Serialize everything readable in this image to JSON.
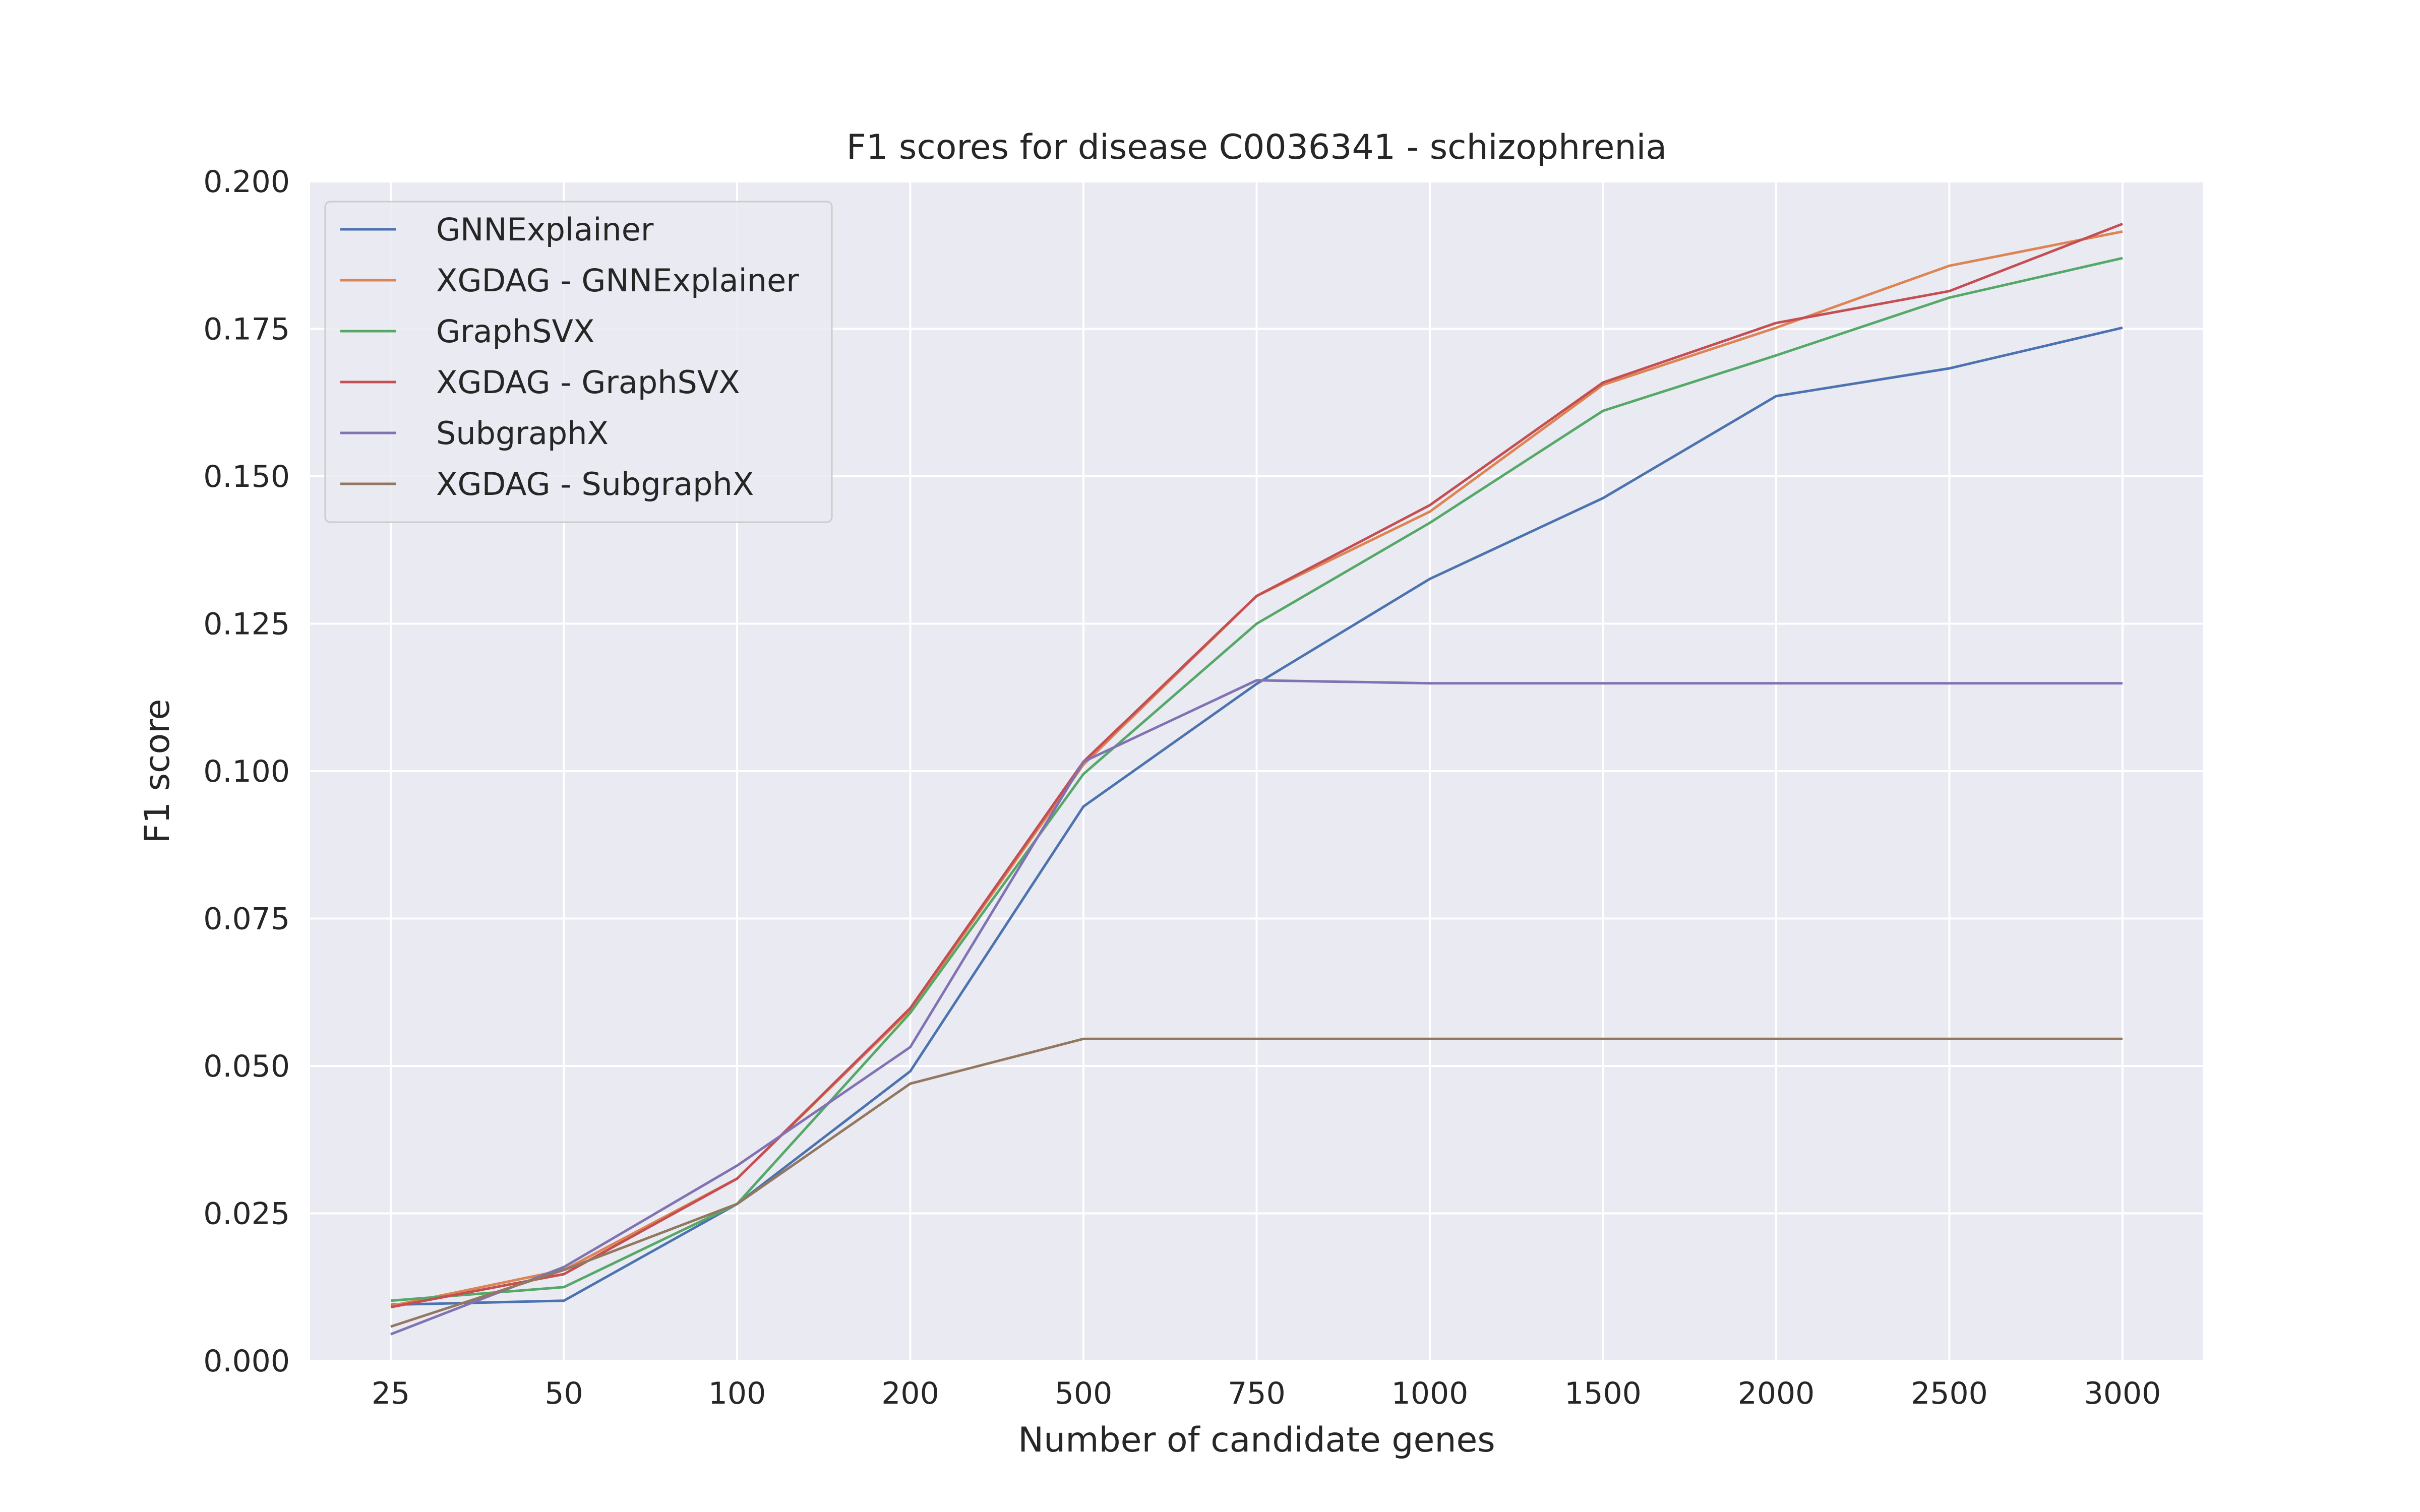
{
  "chart_data": {
    "type": "line",
    "title": "F1 scores for disease C0036341 - schizophrenia",
    "xlabel": "Number of candidate genes",
    "ylabel": "F1 score",
    "categories": [
      "25",
      "50",
      "100",
      "200",
      "500",
      "750",
      "1000",
      "1500",
      "2000",
      "2500",
      "3000"
    ],
    "ylim": [
      0.0,
      0.2
    ],
    "yticks": [
      "0.000",
      "0.025",
      "0.050",
      "0.075",
      "0.100",
      "0.125",
      "0.150",
      "0.175",
      "0.200"
    ],
    "grid": true,
    "legend_position": "upper-left",
    "background": "#eaeaf2",
    "series": [
      {
        "name": "GNNExplainer",
        "color": "#4c72b0",
        "values": [
          0.0095,
          0.0102,
          0.0266,
          0.0491,
          0.094,
          0.1148,
          0.1326,
          0.1463,
          0.1636,
          0.1683,
          0.1752
        ]
      },
      {
        "name": "XGDAG - GNNExplainer",
        "color": "#dd8452",
        "values": [
          0.0093,
          0.0154,
          0.0309,
          0.0595,
          0.1011,
          0.1297,
          0.144,
          0.1655,
          0.1752,
          0.1857,
          0.1915
        ]
      },
      {
        "name": "GraphSVX",
        "color": "#55a868",
        "values": [
          0.0102,
          0.0125,
          0.0266,
          0.059,
          0.0995,
          0.125,
          0.1421,
          0.1611,
          0.1705,
          0.1803,
          0.187
        ]
      },
      {
        "name": "XGDAG - GraphSVX",
        "color": "#c44e52",
        "values": [
          0.0091,
          0.0147,
          0.0309,
          0.0598,
          0.1016,
          0.1297,
          0.1451,
          0.1659,
          0.176,
          0.1814,
          0.1928
        ]
      },
      {
        "name": "SubgraphX",
        "color": "#8172b3",
        "values": [
          0.0045,
          0.0159,
          0.0331,
          0.0532,
          0.1016,
          0.1154,
          0.1149,
          0.1149,
          0.1149,
          0.1149,
          0.1149
        ]
      },
      {
        "name": "XGDAG - SubgraphX",
        "color": "#937860",
        "values": [
          0.0058,
          0.0154,
          0.0266,
          0.047,
          0.0546,
          0.0546,
          0.0546,
          0.0546,
          0.0546,
          0.0546,
          0.0546
        ]
      }
    ]
  }
}
